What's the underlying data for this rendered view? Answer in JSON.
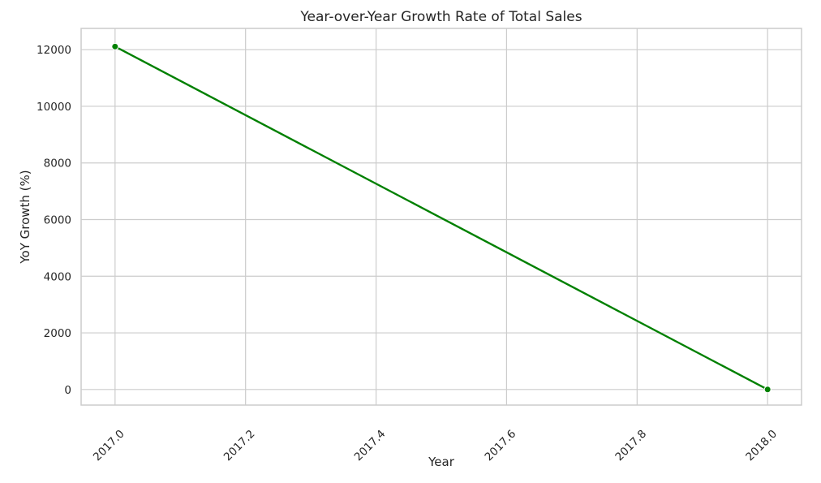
{
  "chart_data": {
    "type": "line",
    "title": "Year-over-Year Growth Rate of Total Sales",
    "xlabel": "Year",
    "ylabel": "YoY Growth (%)",
    "xlim": [
      1996.95,
      2018.05
    ],
    "ylim": [
      -550,
      12750
    ],
    "x_ticks": [
      2017.0,
      2017.2,
      2017.4,
      2017.6,
      2017.8,
      2018.0
    ],
    "x_tick_labels": [
      "2017.0",
      "2017.2",
      "2017.4",
      "2017.6",
      "2017.8",
      "2018.0"
    ],
    "y_ticks": [
      0,
      2000,
      4000,
      6000,
      8000,
      10000,
      12000
    ],
    "y_tick_labels": [
      "0",
      "2000",
      "4000",
      "6000",
      "8000",
      "10000",
      "12000"
    ],
    "grid": true,
    "series": [
      {
        "x": [
          2017.0,
          2018.0
        ],
        "y": [
          12110,
          0
        ],
        "color": "#008000",
        "marker": "circle"
      }
    ]
  }
}
